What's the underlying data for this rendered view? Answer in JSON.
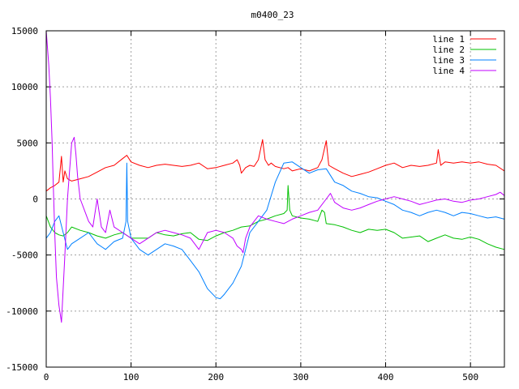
{
  "chart_data": {
    "type": "line",
    "title": "m0400_23",
    "xlabel": "",
    "ylabel": "",
    "xlim": [
      0,
      540
    ],
    "ylim": [
      -15000,
      15000
    ],
    "grid": true,
    "legend_placement": "top-right",
    "x_ticks": [
      0,
      100,
      200,
      300,
      400,
      500
    ],
    "y_ticks": [
      -15000,
      -10000,
      -5000,
      0,
      5000,
      10000,
      15000
    ],
    "x_tick_labels": [
      "0",
      "100",
      "200",
      "300",
      "400",
      "500"
    ],
    "y_tick_labels": [
      "-15000",
      "-10000",
      "-5000",
      "0",
      "5000",
      "10000",
      "15000"
    ],
    "series": [
      {
        "name": "line 1",
        "color": "#ff0000",
        "x": [
          0,
          5,
          10,
          15,
          18,
          20,
          22,
          25,
          30,
          40,
          50,
          60,
          70,
          80,
          90,
          95,
          100,
          110,
          120,
          130,
          140,
          150,
          160,
          170,
          180,
          190,
          200,
          210,
          220,
          225,
          228,
          230,
          235,
          240,
          245,
          250,
          255,
          258,
          262,
          265,
          270,
          280,
          285,
          290,
          300,
          310,
          320,
          325,
          330,
          333,
          340,
          350,
          360,
          370,
          380,
          390,
          400,
          410,
          420,
          430,
          440,
          450,
          460,
          462,
          465,
          470,
          480,
          490,
          500,
          510,
          520,
          530,
          540
        ],
        "values": [
          700,
          1000,
          1200,
          1500,
          3800,
          1500,
          2500,
          1800,
          1600,
          1800,
          2000,
          2400,
          2800,
          3000,
          3600,
          3900,
          3300,
          3000,
          2800,
          3000,
          3100,
          3000,
          2900,
          3000,
          3200,
          2700,
          2800,
          3000,
          3200,
          3500,
          3000,
          2300,
          2800,
          3000,
          2900,
          3500,
          5300,
          3500,
          3000,
          3200,
          2900,
          2700,
          2800,
          2500,
          2700,
          2500,
          2800,
          3500,
          5200,
          3000,
          2700,
          2300,
          2000,
          2200,
          2400,
          2700,
          3000,
          3200,
          2800,
          3000,
          2900,
          3000,
          3200,
          4400,
          3000,
          3300,
          3200,
          3300,
          3200,
          3300,
          3100,
          3000,
          2500
        ]
      },
      {
        "name": "line 2",
        "color": "#00c000",
        "x": [
          0,
          5,
          10,
          15,
          20,
          25,
          30,
          40,
          50,
          60,
          70,
          80,
          90,
          100,
          110,
          120,
          130,
          140,
          150,
          160,
          170,
          180,
          190,
          200,
          210,
          220,
          230,
          240,
          250,
          260,
          270,
          280,
          284,
          285,
          287,
          290,
          300,
          310,
          320,
          325,
          328,
          330,
          340,
          350,
          360,
          370,
          380,
          390,
          400,
          410,
          420,
          430,
          440,
          450,
          460,
          470,
          480,
          490,
          500,
          510,
          520,
          530,
          540
        ],
        "values": [
          -1500,
          -2500,
          -3000,
          -3200,
          -3300,
          -3000,
          -2500,
          -2800,
          -3000,
          -3300,
          -3500,
          -3200,
          -3000,
          -3500,
          -3500,
          -3500,
          -3000,
          -3200,
          -3300,
          -3100,
          -3000,
          -3600,
          -3700,
          -3300,
          -3000,
          -2800,
          -2500,
          -2400,
          -2000,
          -1800,
          -1500,
          -1300,
          -1000,
          1200,
          -1000,
          -1500,
          -1700,
          -1800,
          -2000,
          -1000,
          -1200,
          -2200,
          -2300,
          -2500,
          -2800,
          -3000,
          -2700,
          -2800,
          -2700,
          -3000,
          -3500,
          -3400,
          -3300,
          -3800,
          -3500,
          -3200,
          -3500,
          -3600,
          -3400,
          -3600,
          -4000,
          -4300,
          -4500
        ]
      },
      {
        "name": "line 3",
        "color": "#0080ff",
        "x": [
          0,
          5,
          10,
          15,
          20,
          25,
          30,
          40,
          50,
          60,
          70,
          80,
          90,
          94,
          95,
          96,
          100,
          110,
          120,
          130,
          140,
          150,
          160,
          170,
          180,
          190,
          200,
          205,
          210,
          220,
          230,
          240,
          250,
          260,
          270,
          280,
          290,
          300,
          310,
          320,
          330,
          340,
          350,
          360,
          370,
          380,
          390,
          400,
          410,
          420,
          430,
          440,
          450,
          460,
          470,
          480,
          490,
          500,
          510,
          520,
          530,
          540
        ],
        "values": [
          -3500,
          -3000,
          -2000,
          -1500,
          -3000,
          -4500,
          -4000,
          -3500,
          -3000,
          -4000,
          -4500,
          -3800,
          -3500,
          -2000,
          3200,
          -2000,
          -3500,
          -4500,
          -5000,
          -4500,
          -4000,
          -4200,
          -4500,
          -5500,
          -6500,
          -8000,
          -8800,
          -8900,
          -8500,
          -7500,
          -6000,
          -3000,
          -2000,
          -1000,
          1500,
          3200,
          3300,
          2800,
          2300,
          2600,
          2700,
          1500,
          1200,
          700,
          500,
          200,
          100,
          -200,
          -500,
          -1000,
          -1200,
          -1500,
          -1200,
          -1000,
          -1200,
          -1500,
          -1200,
          -1300,
          -1500,
          -1700,
          -1600,
          -1800
        ]
      },
      {
        "name": "line 4",
        "color": "#c000ff",
        "x": [
          0,
          3,
          5,
          7,
          8,
          10,
          12,
          15,
          18,
          20,
          22,
          25,
          28,
          30,
          33,
          35,
          37,
          40,
          45,
          50,
          55,
          60,
          65,
          70,
          75,
          80,
          90,
          100,
          110,
          120,
          130,
          140,
          150,
          160,
          170,
          180,
          190,
          200,
          210,
          220,
          225,
          230,
          232,
          235,
          240,
          245,
          250,
          260,
          270,
          280,
          290,
          300,
          310,
          320,
          330,
          335,
          340,
          350,
          360,
          370,
          380,
          390,
          400,
          410,
          420,
          430,
          440,
          450,
          460,
          470,
          480,
          490,
          500,
          510,
          520,
          530,
          535,
          540
        ],
        "values": [
          15000,
          12000,
          9000,
          5000,
          2000,
          -3000,
          -7000,
          -9500,
          -11000,
          -8000,
          -5000,
          0,
          3000,
          5000,
          5500,
          4000,
          2000,
          0,
          -1000,
          -2000,
          -2500,
          0,
          -2500,
          -3000,
          -1000,
          -2500,
          -3000,
          -3500,
          -4000,
          -3500,
          -3000,
          -2800,
          -3000,
          -3200,
          -3500,
          -4500,
          -3000,
          -2800,
          -3000,
          -3500,
          -4200,
          -4500,
          -4800,
          -3500,
          -2500,
          -2000,
          -1500,
          -1800,
          -2000,
          -2200,
          -1800,
          -1500,
          -1200,
          -1000,
          0,
          500,
          -300,
          -800,
          -1000,
          -800,
          -500,
          -200,
          0,
          200,
          0,
          -200,
          -500,
          -300,
          -100,
          0,
          -200,
          -300,
          -100,
          0,
          200,
          400,
          600,
          300
        ]
      }
    ]
  }
}
